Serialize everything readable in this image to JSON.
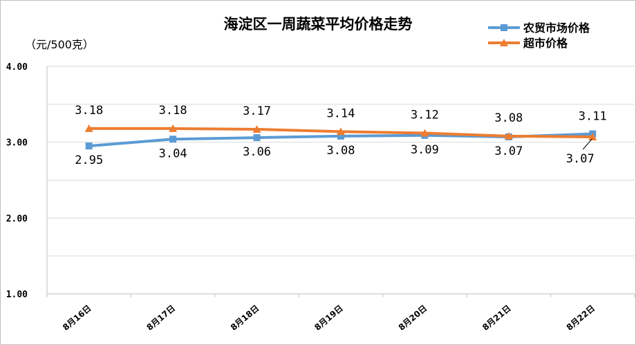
{
  "chart_data": {
    "type": "line",
    "title": "海淀区一周蔬菜平均价格走势",
    "unit_label": "（元/500克）",
    "categories": [
      "8月16日",
      "8月17日",
      "8月18日",
      "8月19日",
      "8月20日",
      "8月21日",
      "8月22日"
    ],
    "y_tick_labels": [
      "1.00",
      "2.00",
      "3.00",
      "4.00"
    ],
    "ylim": [
      1.0,
      4.0
    ],
    "grid": true,
    "legend_position": "top-right",
    "series": [
      {
        "name": "农贸市场价格",
        "color": "#5b9bd5",
        "marker": "square",
        "values": [
          2.95,
          3.04,
          3.06,
          3.08,
          3.09,
          3.07,
          3.11
        ],
        "labels": [
          "2.95",
          "3.04",
          "3.06",
          "3.08",
          "3.09",
          "3.07",
          "3.11"
        ]
      },
      {
        "name": "超市价格",
        "color": "#ed7d31",
        "marker": "triangle",
        "values": [
          3.18,
          3.18,
          3.17,
          3.14,
          3.12,
          3.08,
          3.07
        ],
        "labels": [
          "3.18",
          "3.18",
          "3.17",
          "3.14",
          "3.12",
          "3.08",
          "3.07"
        ]
      }
    ]
  }
}
